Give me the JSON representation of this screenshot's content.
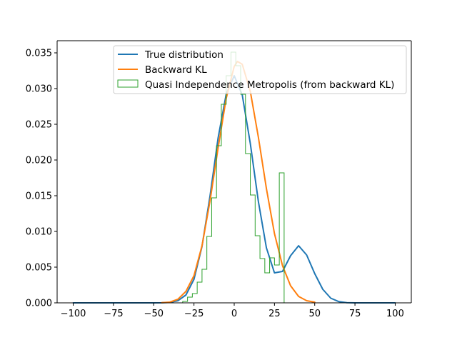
{
  "chart_data": {
    "type": "line",
    "title": "",
    "xlabel": "",
    "ylabel": "",
    "xlim": [
      -110,
      110
    ],
    "ylim": [
      0,
      0.0367
    ],
    "x_ticks": [
      {
        "value": -100,
        "label": "−100"
      },
      {
        "value": -75,
        "label": "−75"
      },
      {
        "value": -50,
        "label": "−50"
      },
      {
        "value": -25,
        "label": "−25"
      },
      {
        "value": 0,
        "label": "0"
      },
      {
        "value": 25,
        "label": "25"
      },
      {
        "value": 50,
        "label": "50"
      },
      {
        "value": 75,
        "label": "75"
      },
      {
        "value": 100,
        "label": "100"
      }
    ],
    "y_ticks": [
      {
        "value": 0.0,
        "label": "0.000"
      },
      {
        "value": 0.005,
        "label": "0.005"
      },
      {
        "value": 0.01,
        "label": "0.010"
      },
      {
        "value": 0.015,
        "label": "0.015"
      },
      {
        "value": 0.02,
        "label": "0.020"
      },
      {
        "value": 0.025,
        "label": "0.025"
      },
      {
        "value": 0.03,
        "label": "0.030"
      },
      {
        "value": 0.035,
        "label": "0.035"
      }
    ],
    "grid": false,
    "legend_position": "top-center",
    "series": [
      {
        "name": "True distribution",
        "kind": "line",
        "color": "#1f77b4",
        "x": [
          -100,
          -90,
          -80,
          -70,
          -60,
          -50,
          -45,
          -40,
          -35,
          -30,
          -25,
          -20,
          -15,
          -10,
          -5,
          0,
          5,
          10,
          15,
          20,
          25,
          30,
          35,
          40,
          45,
          50,
          55,
          60,
          65,
          70,
          75,
          80,
          90,
          100
        ],
        "y": [
          0,
          0,
          0,
          0,
          0,
          0,
          1e-05,
          6e-05,
          0.0003,
          0.0011,
          0.0033,
          0.0079,
          0.015,
          0.0231,
          0.0292,
          0.0318,
          0.0291,
          0.0223,
          0.0142,
          0.0077,
          0.0042,
          0.0044,
          0.0066,
          0.008,
          0.0067,
          0.0041,
          0.0019,
          0.00065,
          0.00017,
          3e-05,
          5e-06,
          0,
          0,
          0
        ]
      },
      {
        "name": "Backward KL",
        "kind": "line",
        "color": "#ff7f0e",
        "x": [
          -45,
          -40,
          -35,
          -30,
          -25,
          -20,
          -15,
          -10,
          -5,
          0,
          2,
          5,
          10,
          15,
          20,
          25,
          30,
          35,
          40,
          45,
          50
        ],
        "y": [
          2e-05,
          0.0001,
          0.0005,
          0.0016,
          0.0038,
          0.008,
          0.0143,
          0.0217,
          0.0286,
          0.0331,
          0.0338,
          0.0334,
          0.0296,
          0.0232,
          0.016,
          0.0097,
          0.0052,
          0.0024,
          0.0009,
          0.0003,
          0.0001
        ]
      },
      {
        "name": "Quasi Independence Metropolis (from backward KL)",
        "kind": "histogram",
        "color": "#2ca02c",
        "bin_edges": [
          -32,
          -29,
          -26,
          -23,
          -20,
          -17,
          -14,
          -11,
          -8,
          -5,
          -2,
          1,
          4,
          7,
          10,
          13,
          16,
          19,
          22,
          25,
          28,
          31,
          34,
          37
        ],
        "values": [
          0.0002,
          0.0008,
          0.0013,
          0.0029,
          0.0047,
          0.0093,
          0.0147,
          0.022,
          0.0278,
          0.0318,
          0.0351,
          0.0332,
          0.0292,
          0.0209,
          0.0151,
          0.0094,
          0.0062,
          0.0042,
          0.0063,
          0.0053,
          0.0182,
          0,
          0
        ]
      }
    ]
  }
}
